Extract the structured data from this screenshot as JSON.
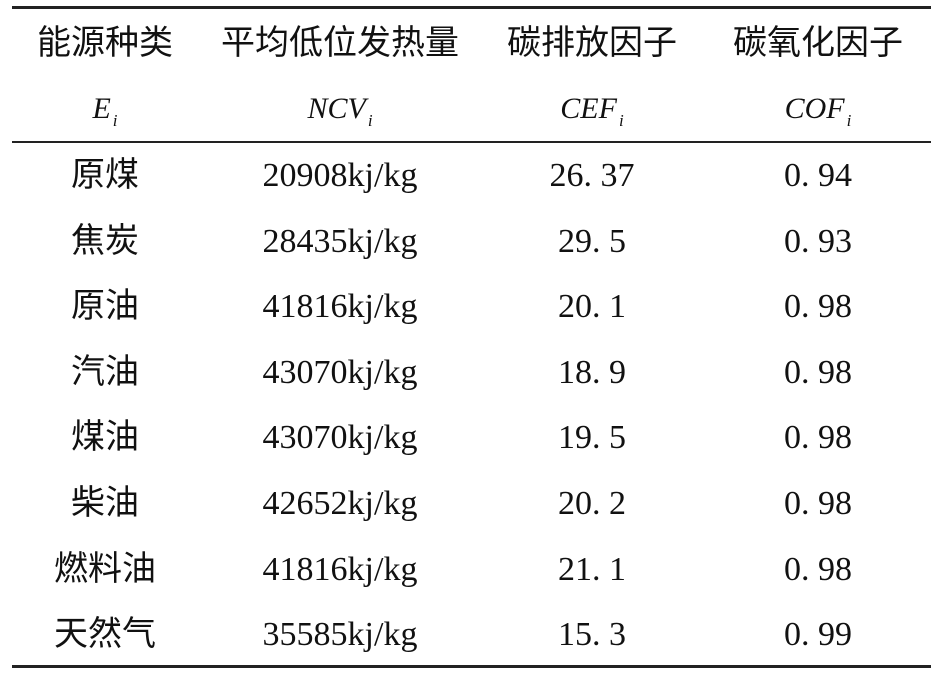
{
  "table": {
    "columns": [
      {
        "name": "能源种类",
        "symbol": "E",
        "subscript": "i"
      },
      {
        "name": "平均低位发热量",
        "symbol": "NCV",
        "subscript": "i"
      },
      {
        "name": "碳排放因子",
        "symbol": "CEF",
        "subscript": "i"
      },
      {
        "name": "碳氧化因子",
        "symbol": "COF",
        "subscript": "i"
      }
    ],
    "rows": [
      [
        "原煤",
        "20908kj/kg",
        "26. 37",
        "0. 94"
      ],
      [
        "焦炭",
        "28435kj/kg",
        "29. 5",
        "0. 93"
      ],
      [
        "原油",
        "41816kj/kg",
        "20. 1",
        "0. 98"
      ],
      [
        "汽油",
        "43070kj/kg",
        "18. 9",
        "0. 98"
      ],
      [
        "煤油",
        "43070kj/kg",
        "19. 5",
        "0. 98"
      ],
      [
        "柴油",
        "42652kj/kg",
        "20. 2",
        "0. 98"
      ],
      [
        "燃料油",
        "41816kj/kg",
        "21. 1",
        "0. 98"
      ],
      [
        "天然气",
        "35585kj/kg",
        "15. 3",
        "0. 99"
      ]
    ]
  }
}
